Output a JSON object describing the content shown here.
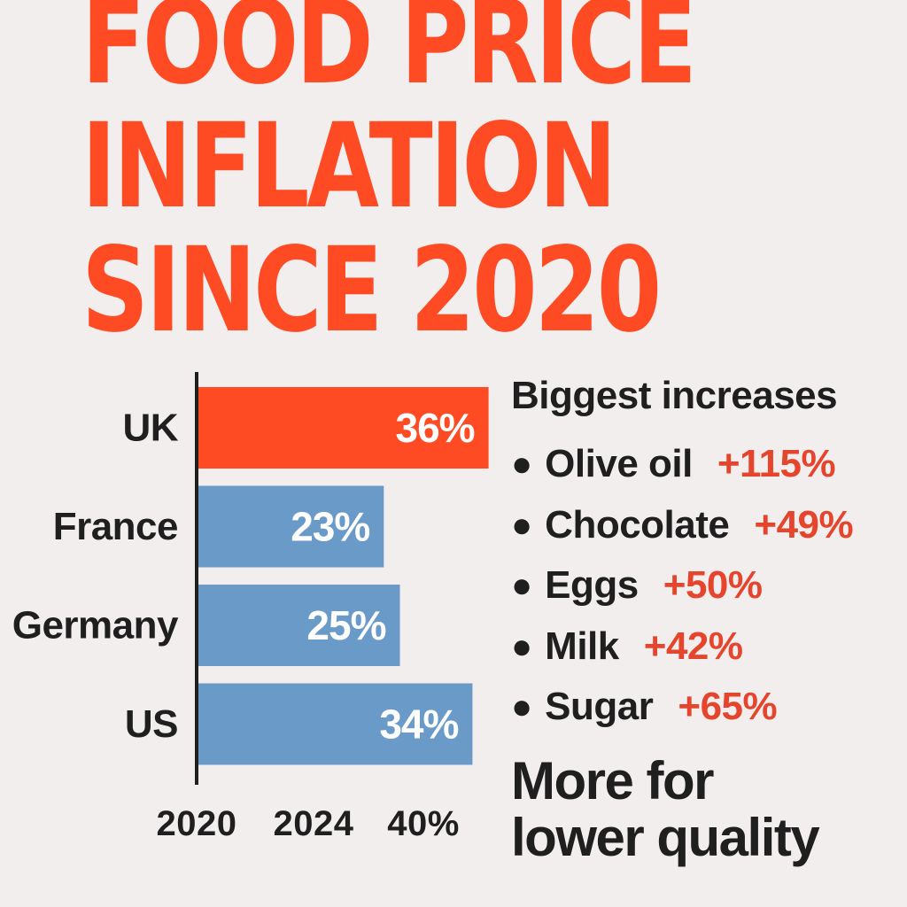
{
  "title": {
    "line1": "FOOD PRICE",
    "line2": "INFLATION",
    "line3": "SINCE 2020"
  },
  "chart_data": {
    "type": "bar",
    "orientation": "horizontal",
    "categories": [
      "UK",
      "France",
      "Germany",
      "US"
    ],
    "values": [
      36,
      23,
      25,
      34
    ],
    "value_labels": [
      "36%",
      "23%",
      "25%",
      "34%"
    ],
    "x_tick_labels": [
      "2020",
      "2024",
      "40%"
    ],
    "colors": [
      "#ff4b23",
      "#6a9bc8",
      "#6a9bc8",
      "#6a9bc8"
    ],
    "grid": false
  },
  "increases": {
    "heading": "Biggest increases",
    "items": [
      {
        "name": "Olive oil",
        "value": "+115%"
      },
      {
        "name": "Chocolate",
        "value": "+49%"
      },
      {
        "name": "Eggs",
        "value": "+50%"
      },
      {
        "name": "Milk",
        "value": "+42%"
      },
      {
        "name": "Sugar",
        "value": "+65%"
      }
    ]
  },
  "tagline": {
    "line1": "More for",
    "line2": "lower quality"
  },
  "colors": {
    "accent": "#ff4b23",
    "bar_blue": "#6a9bc8",
    "increase_red": "#e5452c",
    "text": "#1f1f1f",
    "background": "#f2eeee"
  }
}
